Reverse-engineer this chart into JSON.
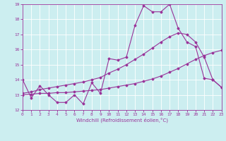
{
  "title": "",
  "xlabel": "Windchill (Refroidissement éolien,°C)",
  "ylabel": "",
  "bg_color": "#cceef0",
  "line_color": "#993399",
  "xlim": [
    0,
    23
  ],
  "ylim": [
    12,
    19
  ],
  "yticks": [
    12,
    13,
    14,
    15,
    16,
    17,
    18,
    19
  ],
  "xticks": [
    0,
    1,
    2,
    3,
    4,
    5,
    6,
    7,
    8,
    9,
    10,
    11,
    12,
    13,
    14,
    15,
    16,
    17,
    18,
    19,
    20,
    21,
    22,
    23
  ],
  "series1_x": [
    0,
    1,
    2,
    3,
    4,
    5,
    6,
    7,
    8,
    9,
    10,
    11,
    12,
    13,
    14,
    15,
    16,
    17,
    18,
    19,
    20,
    21,
    22,
    23
  ],
  "series1_y": [
    14.0,
    12.8,
    13.6,
    13.0,
    12.5,
    12.5,
    13.0,
    12.4,
    13.8,
    13.1,
    15.4,
    15.3,
    15.5,
    17.6,
    18.9,
    18.5,
    18.5,
    19.0,
    17.4,
    16.5,
    16.2,
    14.1,
    14.0,
    13.5
  ],
  "series2_x": [
    0,
    1,
    2,
    3,
    4,
    5,
    6,
    7,
    8,
    9,
    10,
    11,
    12,
    13,
    14,
    15,
    16,
    17,
    18,
    19,
    20,
    21,
    22,
    23
  ],
  "series2_y": [
    13.0,
    13.05,
    13.1,
    13.1,
    13.15,
    13.15,
    13.2,
    13.25,
    13.3,
    13.35,
    13.45,
    13.55,
    13.65,
    13.75,
    13.9,
    14.05,
    14.25,
    14.5,
    14.75,
    15.05,
    15.35,
    15.6,
    15.8,
    15.95
  ],
  "series3_x": [
    0,
    1,
    2,
    3,
    4,
    5,
    6,
    7,
    8,
    9,
    10,
    11,
    12,
    13,
    14,
    15,
    16,
    17,
    18,
    19,
    20,
    21,
    22,
    23
  ],
  "series3_y": [
    13.1,
    13.2,
    13.35,
    13.45,
    13.55,
    13.65,
    13.75,
    13.85,
    14.0,
    14.15,
    14.45,
    14.7,
    15.0,
    15.35,
    15.7,
    16.1,
    16.5,
    16.85,
    17.1,
    17.0,
    16.5,
    15.5,
    14.0,
    13.5
  ]
}
